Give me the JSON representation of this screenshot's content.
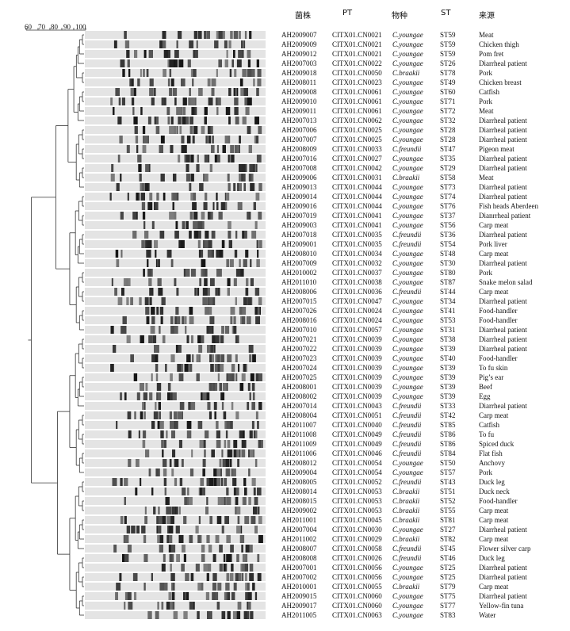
{
  "headers": {
    "strain": "菌株",
    "pt": "PT",
    "species": "物种",
    "st": "ST",
    "source": "来源"
  },
  "scale": {
    "ticks": [
      "60",
      "70",
      "80",
      "90",
      "100"
    ]
  },
  "rows": [
    {
      "strain": "AH2009007",
      "pt": "CITX01.CN0021",
      "species": "C.youngae",
      "st": "ST59",
      "source": "Meat"
    },
    {
      "strain": "AH2009009",
      "pt": "CITX01.CN0021",
      "species": "C.youngae",
      "st": "ST59",
      "source": "Chicken thigh"
    },
    {
      "strain": "AH2009012",
      "pt": "CITX01.CN0021",
      "species": "C.youngae",
      "st": "ST59",
      "source": "Pom fret"
    },
    {
      "strain": "AH2007003",
      "pt": "CITX01.CN0022",
      "species": "C.youngae",
      "st": "ST26",
      "source": "Diarrheal patient"
    },
    {
      "strain": "AH2009018",
      "pt": "CITX01.CN0050",
      "species": "C.braakii",
      "st": "ST78",
      "source": "Pork"
    },
    {
      "strain": "AH2008011",
      "pt": "CITX01.CN0023",
      "species": "C.youngae",
      "st": "ST49",
      "source": "Chicken breast"
    },
    {
      "strain": "AH2009008",
      "pt": "CITX01.CN0061",
      "species": "C.youngae",
      "st": "ST60",
      "source": "Catfish"
    },
    {
      "strain": "AH2009010",
      "pt": "CITX01.CN0061",
      "species": "C.youngae",
      "st": "ST71",
      "source": "Pork"
    },
    {
      "strain": "AH2009011",
      "pt": "CITX01.CN0061",
      "species": "C.youngae",
      "st": "ST72",
      "source": "Meat"
    },
    {
      "strain": "AH2007013",
      "pt": "CITX01.CN0062",
      "species": "C.youngae",
      "st": "ST32",
      "source": "Diarrheal patient"
    },
    {
      "strain": "AH2007006",
      "pt": "CITX01.CN0025",
      "species": "C.youngae",
      "st": "ST28",
      "source": "Diarrheal patient"
    },
    {
      "strain": "AH2007007",
      "pt": "CITX01.CN0025",
      "species": "C.youngae",
      "st": "ST28",
      "source": "Diarrheal patient"
    },
    {
      "strain": "AH2008009",
      "pt": "CITX01.CN0033",
      "species": "C.freundii",
      "st": "ST47",
      "source": "Pigeon meat"
    },
    {
      "strain": "AH2007016",
      "pt": "CITX01.CN0027",
      "species": "C.youngae",
      "st": "ST35",
      "source": "Diarrheal patient"
    },
    {
      "strain": "AH2007008",
      "pt": "CITX01.CN0042",
      "species": "C.youngae",
      "st": "ST29",
      "source": "Diarrheal patient"
    },
    {
      "strain": "AH2009006",
      "pt": "CITX01.CN0031",
      "species": "C.braakii",
      "st": "ST58",
      "source": "Meat"
    },
    {
      "strain": "AH2009013",
      "pt": "CITX01.CN0044",
      "species": "C.youngae",
      "st": "ST73",
      "source": "Diarrheal patient"
    },
    {
      "strain": "AH2009014",
      "pt": "CITX01.CN0044",
      "species": "C.youngae",
      "st": "ST74",
      "source": "Diarrheal patient"
    },
    {
      "strain": "AH2009016",
      "pt": "CITX01.CN0044",
      "species": "C.youngae",
      "st": "ST76",
      "source": "Fish heads Aberdeen"
    },
    {
      "strain": "AH2007019",
      "pt": "CITX01.CN0041",
      "species": "C.youngae",
      "st": "ST37",
      "source": "Dianrrheal patient"
    },
    {
      "strain": "AH2009003",
      "pt": "CITX01.CN0041",
      "species": "C.youngae",
      "st": "ST56",
      "source": "Carp meat"
    },
    {
      "strain": "AH2007018",
      "pt": "CITX01.CN0035",
      "species": "C.freundii",
      "st": "ST36",
      "source": "Diarrheal patient"
    },
    {
      "strain": "AH2009001",
      "pt": "CITX01.CN0035",
      "species": "C.freundii",
      "st": "ST54",
      "source": "Pork liver"
    },
    {
      "strain": "AH2008010",
      "pt": "CITX01.CN0034",
      "species": "C.youngae",
      "st": "ST48",
      "source": "Carp meat"
    },
    {
      "strain": "AH2007009",
      "pt": "CITX01.CN0032",
      "species": "C.youngae",
      "st": "ST30",
      "source": "Diarrheal patient"
    },
    {
      "strain": "AH2010002",
      "pt": "CITX01.CN0037",
      "species": "C.youngae",
      "st": "ST80",
      "source": "Pork"
    },
    {
      "strain": "AH2011010",
      "pt": "CITX01.CN0038",
      "species": "C.youngae",
      "st": "ST87",
      "source": "Snake melon salad"
    },
    {
      "strain": "AH2008006",
      "pt": "CITX01.CN0036",
      "species": "C.freundii",
      "st": "ST44",
      "source": "Carp meat"
    },
    {
      "strain": "AH2007015",
      "pt": "CITX01.CN0047",
      "species": "C.youngae",
      "st": "ST34",
      "source": "Diarrheal patient"
    },
    {
      "strain": "AH2007026",
      "pt": "CITX01.CN0024",
      "species": "C.youngae",
      "st": "ST41",
      "source": "Food-handler"
    },
    {
      "strain": "AH2008016",
      "pt": "CITX01.CN0024",
      "species": "C.youngae",
      "st": "ST53",
      "source": "Food-handler"
    },
    {
      "strain": "AH2007010",
      "pt": "CITX01.CN0057",
      "species": "C.youngae",
      "st": "ST31",
      "source": "Diarrheal patient"
    },
    {
      "strain": "AH2007021",
      "pt": "CITX01.CN0039",
      "species": "C.youngae",
      "st": "ST38",
      "source": "Diarrheal patient"
    },
    {
      "strain": "AH2007022",
      "pt": "CITX01.CN0039",
      "species": "C.youngae",
      "st": "ST39",
      "source": "Diarrheal patient"
    },
    {
      "strain": "AH2007023",
      "pt": "CITX01.CN0039",
      "species": "C.youngae",
      "st": "ST40",
      "source": "Food-handler"
    },
    {
      "strain": "AH2007024",
      "pt": "CITX01.CN0039",
      "species": "C.youngae",
      "st": "ST39",
      "source": "To fu skin"
    },
    {
      "strain": "AH2007025",
      "pt": "CITX01.CN0039",
      "species": "C.youngae",
      "st": "ST39",
      "source": "Pig’s ear"
    },
    {
      "strain": "AH2008001",
      "pt": "CITX01.CN0039",
      "species": "C.youngae",
      "st": "ST39",
      "source": "Beef"
    },
    {
      "strain": "AH2008002",
      "pt": "CITX01.CN0039",
      "species": "C.youngae",
      "st": "ST39",
      "source": "Egg"
    },
    {
      "strain": "AH2007014",
      "pt": "CITX01.CN0043",
      "species": "C.freundii",
      "st": "ST33",
      "source": "Diarrheal patient"
    },
    {
      "strain": "AH2008004",
      "pt": "CITX01.CN0051",
      "species": "C.freundii",
      "st": "ST42",
      "source": "Carp meat"
    },
    {
      "strain": "AH2011007",
      "pt": "CITX01.CN0040",
      "species": "C.freundii",
      "st": "ST85",
      "source": "Catfish"
    },
    {
      "strain": "AH2011008",
      "pt": "CITX01.CN0049",
      "species": "C.freundii",
      "st": "ST86",
      "source": "To fu"
    },
    {
      "strain": "AH2011009",
      "pt": "CITX01.CN0049",
      "species": "C.freundii",
      "st": "ST86",
      "source": "Spiced duck"
    },
    {
      "strain": "AH2011006",
      "pt": "CITX01.CN0046",
      "species": "C.freundii",
      "st": "ST84",
      "source": "Flat fish"
    },
    {
      "strain": "AH2008012",
      "pt": "CITX01.CN0054",
      "species": "C.youngae",
      "st": "ST50",
      "source": "Anchovy"
    },
    {
      "strain": "AH2009004",
      "pt": "CITX01.CN0054",
      "species": "C.youngae",
      "st": "ST57",
      "source": "Pork"
    },
    {
      "strain": "AH2008005",
      "pt": "CITX01.CN0052",
      "species": "C.freundii",
      "st": "ST43",
      "source": "Duck leg"
    },
    {
      "strain": "AH2008014",
      "pt": "CITX01.CN0053",
      "species": "C.braakii",
      "st": "ST51",
      "source": "Duck neck"
    },
    {
      "strain": "AH2008015",
      "pt": "CITX01.CN0053",
      "species": "C.braakii",
      "st": "ST52",
      "source": "Food-handler"
    },
    {
      "strain": "AH2009002",
      "pt": "CITX01.CN0053",
      "species": "C.braakii",
      "st": "ST55",
      "source": "Carp meat"
    },
    {
      "strain": "AH2011001",
      "pt": "CITX01.CN0045",
      "species": "C.braakii",
      "st": "ST81",
      "source": "Carp meat"
    },
    {
      "strain": "AH2007004",
      "pt": "CITX01.CN0030",
      "species": "C.youngae",
      "st": "ST27",
      "source": "Diarrheal patient"
    },
    {
      "strain": "AH2011002",
      "pt": "CITX01.CN0029",
      "species": "C.braakii",
      "st": "ST82",
      "source": "Carp meat"
    },
    {
      "strain": "AH2008007",
      "pt": "CITX01.CN0058",
      "species": "C.freundii",
      "st": "ST45",
      "source": "Flower silver carp"
    },
    {
      "strain": "AH2008008",
      "pt": "CITX01.CN0026",
      "species": "C.freundii",
      "st": "ST46",
      "source": "Duck leg"
    },
    {
      "strain": "AH2007001",
      "pt": "CITX01.CN0056",
      "species": "C.youngae",
      "st": "ST25",
      "source": "Diarrheal patient"
    },
    {
      "strain": "AH2007002",
      "pt": "CITX01.CN0056",
      "species": "C.youngae",
      "st": "ST25",
      "source": "Diarrheal patient"
    },
    {
      "strain": "AH2010001",
      "pt": "CITX01.CN0055",
      "species": "C.braakii",
      "st": "ST79",
      "source": "Carp meat"
    },
    {
      "strain": "AH2009015",
      "pt": "CITX01.CN0060",
      "species": "C.youngae",
      "st": "ST75",
      "source": "Diarrheal patient"
    },
    {
      "strain": "AH2009017",
      "pt": "CITX01.CN0060",
      "species": "C.youngae",
      "st": "ST77",
      "source": "Yellow-fin tuna"
    },
    {
      "strain": "AH2011005",
      "pt": "CITX01.CN0063",
      "species": "C.youngae",
      "st": "ST83",
      "source": "Water"
    }
  ]
}
